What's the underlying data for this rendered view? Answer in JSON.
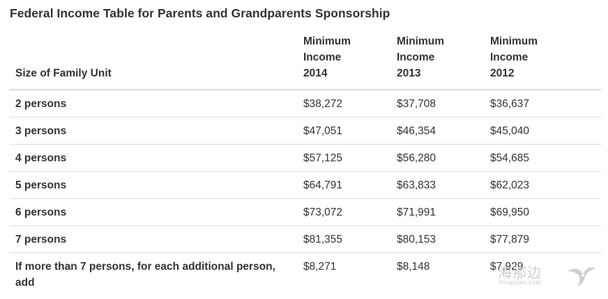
{
  "caption": "Federal Income Table for Parents and Grandparents Sponsorship",
  "table": {
    "headers": {
      "size": "Size of Family Unit",
      "y2014": [
        "Minimum",
        "Income",
        "2014"
      ],
      "y2013": [
        "Minimum",
        "Income",
        "2013"
      ],
      "y2012": [
        "Minimum",
        "Income",
        "2012"
      ]
    },
    "rows": [
      {
        "size": "2 persons",
        "y2014": "$38,272",
        "y2013": "$37,708",
        "y2012": "$36,637"
      },
      {
        "size": "3 persons",
        "y2014": "$47,051",
        "y2013": "$46,354",
        "y2012": "$45,040"
      },
      {
        "size": "4 persons",
        "y2014": "$57,125",
        "y2013": "$56,280",
        "y2012": "$54,685"
      },
      {
        "size": "5 persons",
        "y2014": "$64,791",
        "y2013": "$63,833",
        "y2012": "$62,023"
      },
      {
        "size": "6 persons",
        "y2014": "$73,072",
        "y2013": "$71,991",
        "y2012": "$69,950"
      },
      {
        "size": "7 persons",
        "y2014": "$81,355",
        "y2013": "$80,153",
        "y2012": "$77,879"
      },
      {
        "size": "If more than 7 persons, for each additional person, add",
        "y2014": "$8,271",
        "y2013": "$8,148",
        "y2012": "$7,929"
      }
    ]
  },
  "watermark": {
    "text": "海那边",
    "url": "hinabian.com",
    "icon": "bird-logo-icon"
  }
}
